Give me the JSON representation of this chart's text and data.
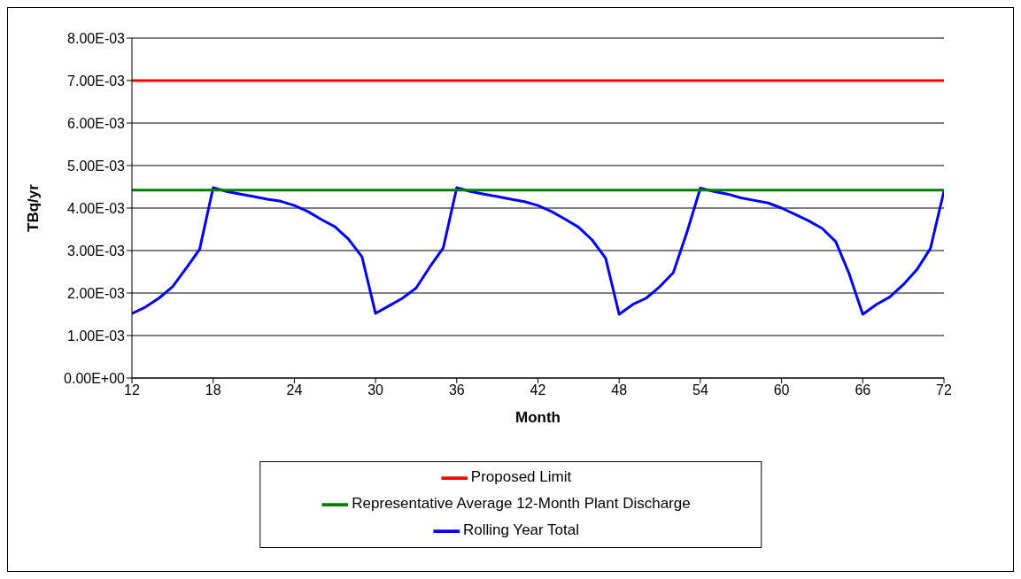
{
  "chart_data": {
    "type": "line",
    "xlabel": "Month",
    "ylabel": "TBq/yr",
    "xlim": [
      12,
      72
    ],
    "xticks": [
      12,
      18,
      24,
      30,
      36,
      42,
      48,
      54,
      60,
      66,
      72
    ],
    "ylim": [
      0,
      0.008
    ],
    "yticks": [
      {
        "value": 0,
        "label": "0.00E+00"
      },
      {
        "value": 0.001,
        "label": "1.00E-03"
      },
      {
        "value": 0.002,
        "label": "2.00E-03"
      },
      {
        "value": 0.003,
        "label": "3.00E-03"
      },
      {
        "value": 0.004,
        "label": "4.00E-03"
      },
      {
        "value": 0.005,
        "label": "5.00E-03"
      },
      {
        "value": 0.006,
        "label": "6.00E-03"
      },
      {
        "value": 0.007,
        "label": "7.00E-03"
      },
      {
        "value": 0.008,
        "label": "8.00E-03"
      }
    ],
    "grid": "y",
    "legend": "bottom",
    "marker": "none",
    "line_style": "solid",
    "series": [
      {
        "name": "Rolling Year Total",
        "color": "#0000ff",
        "x": [
          12,
          13,
          14,
          15,
          16,
          17,
          18,
          19,
          20,
          21,
          22,
          23,
          24,
          25,
          26,
          27,
          28,
          29,
          30,
          31,
          32,
          33,
          34,
          35,
          36,
          37,
          38,
          39,
          40,
          41,
          42,
          43,
          44,
          45,
          46,
          47,
          48,
          49,
          50,
          51,
          52,
          53,
          54,
          55,
          56,
          57,
          58,
          59,
          60,
          61,
          62,
          63,
          64,
          65,
          66,
          67,
          68,
          69,
          70,
          71,
          72
        ],
        "values": [
          0.00152,
          0.00167,
          0.00188,
          0.00215,
          0.00258,
          0.00303,
          0.00448,
          0.00439,
          0.00433,
          0.00427,
          0.00421,
          0.00416,
          0.00406,
          0.00392,
          0.00373,
          0.00356,
          0.00327,
          0.00285,
          0.00152,
          0.0017,
          0.00188,
          0.00212,
          0.00261,
          0.00306,
          0.00448,
          0.00439,
          0.00433,
          0.00427,
          0.00421,
          0.00415,
          0.00406,
          0.00392,
          0.00374,
          0.00355,
          0.00325,
          0.00282,
          0.0015,
          0.00173,
          0.00188,
          0.00215,
          0.00248,
          0.00342,
          0.00447,
          0.00439,
          0.00433,
          0.00424,
          0.00418,
          0.00412,
          0.004,
          0.00385,
          0.0037,
          0.00352,
          0.00321,
          0.00245,
          0.0015,
          0.00173,
          0.00191,
          0.0022,
          0.00255,
          0.00305,
          0.0044
        ]
      },
      {
        "name": "Representative Average 12-Month Plant Discharge",
        "color": "#008000",
        "x": [
          12,
          72
        ],
        "values": [
          0.00442,
          0.00442
        ]
      },
      {
        "name": "Proposed Limit",
        "color": "#ff0000",
        "x": [
          12,
          72
        ],
        "values": [
          0.007,
          0.007
        ]
      }
    ]
  }
}
